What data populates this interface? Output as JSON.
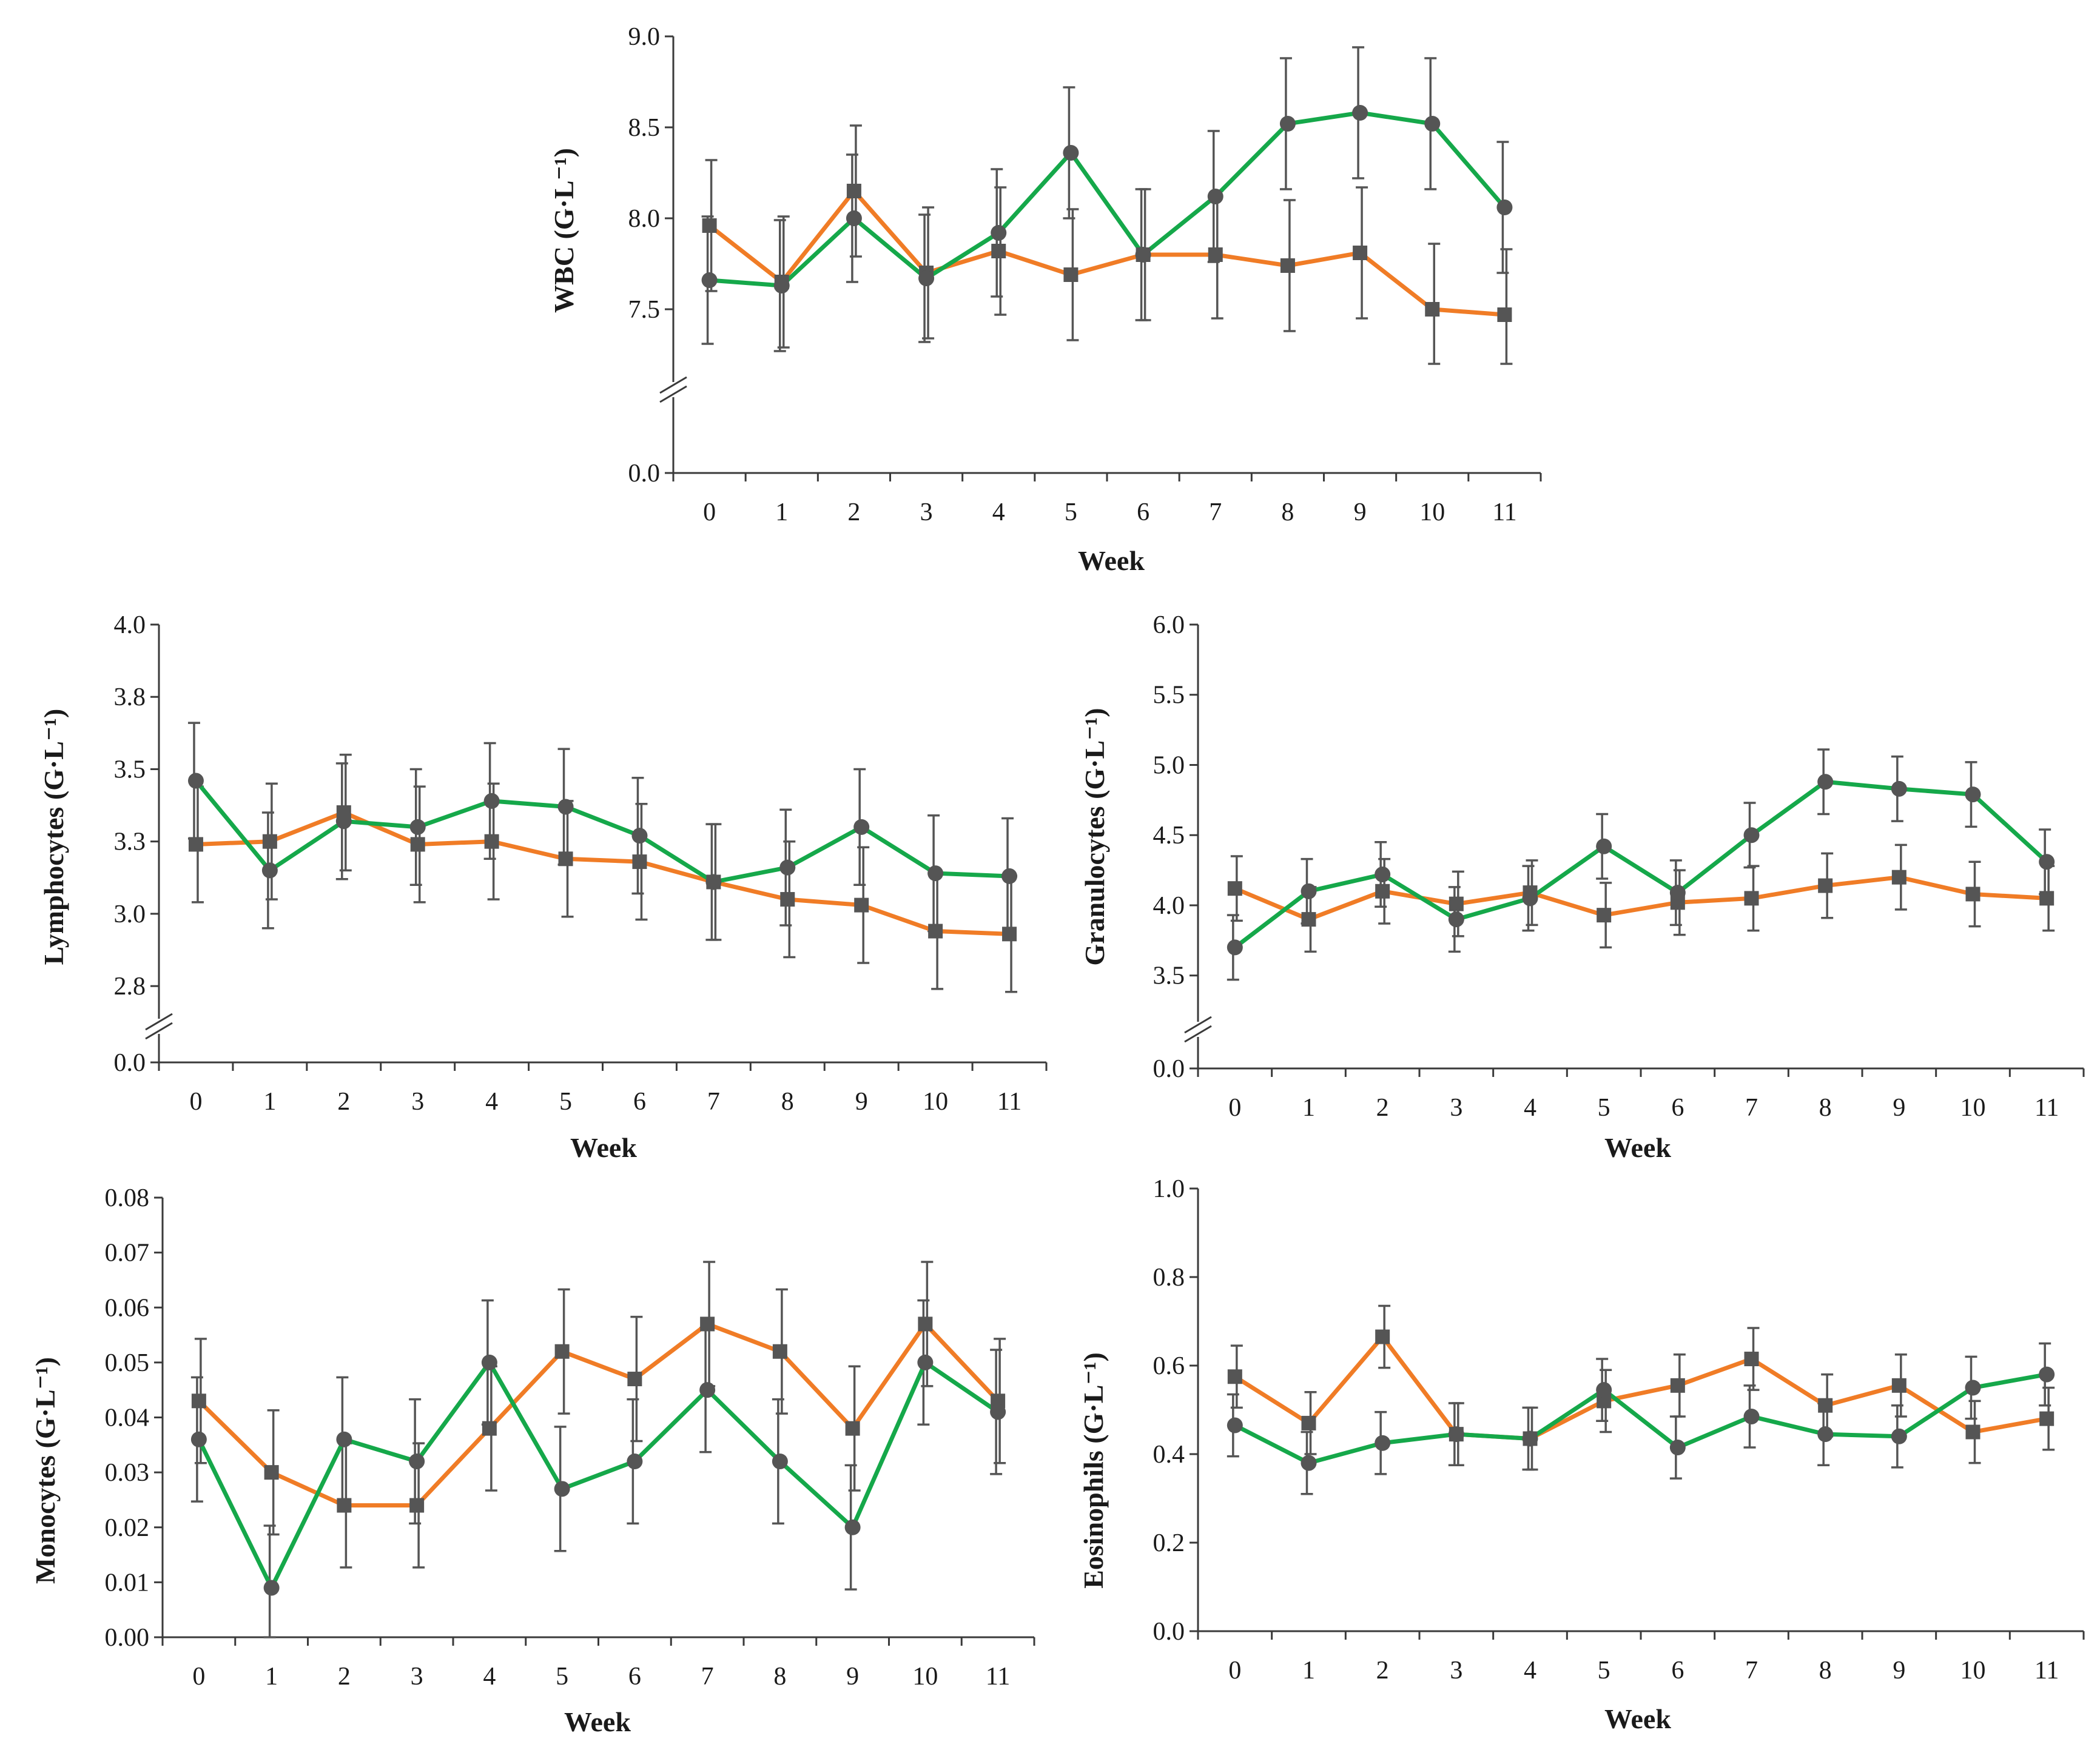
{
  "colors": {
    "series_a": "#F07C26",
    "series_b": "#15A84A",
    "marker": "#555555"
  },
  "chart_data": [
    {
      "id": "wbc",
      "type": "line",
      "title": "",
      "xlabel": "Week",
      "ylabel": "WBC (G·L⁻¹)",
      "ylim": [
        7.2,
        9.0
      ],
      "yticks": [
        7.5,
        8.0,
        8.5,
        9.0
      ],
      "ytick_labels": [
        "7.5",
        "8.0",
        "8.5",
        "9.0"
      ],
      "y_break_label": "0.0",
      "categories": [
        "0",
        "1",
        "2",
        "3",
        "4",
        "5",
        "6",
        "7",
        "8",
        "9",
        "10",
        "11"
      ],
      "series": [
        {
          "name": "square",
          "marker": "square",
          "color": "#F07C26",
          "values": [
            7.96,
            7.65,
            8.15,
            7.7,
            7.82,
            7.69,
            7.8,
            7.8,
            7.74,
            7.81,
            7.5,
            7.47
          ],
          "errors": [
            0.36,
            0.36,
            0.36,
            0.36,
            0.35,
            0.36,
            0.36,
            0.35,
            0.36,
            0.36,
            0.36,
            0.36
          ]
        },
        {
          "name": "circle",
          "marker": "circle",
          "color": "#15A84A",
          "values": [
            7.66,
            7.63,
            8.0,
            7.67,
            7.92,
            8.36,
            7.8,
            8.12,
            8.52,
            8.58,
            8.52,
            8.06
          ],
          "errors": [
            0.35,
            0.36,
            0.35,
            0.35,
            0.35,
            0.36,
            0.36,
            0.36,
            0.36,
            0.36,
            0.36,
            0.36
          ]
        }
      ]
    },
    {
      "id": "lymphocytes",
      "type": "line",
      "title": "",
      "xlabel": "Week",
      "ylabel": "Lymphocytes (G·L⁻¹)",
      "ylim": [
        2.7,
        4.0
      ],
      "yticks": [
        2.75,
        3.0,
        3.25,
        3.5,
        3.75,
        4.0
      ],
      "ytick_labels": [
        "2.8",
        "3.0",
        "3.3",
        "3.5",
        "3.8",
        "4.0"
      ],
      "y_break_label": "0.0",
      "categories": [
        "0",
        "1",
        "2",
        "3",
        "4",
        "5",
        "6",
        "7",
        "8",
        "9",
        "10",
        "11"
      ],
      "series": [
        {
          "name": "square",
          "marker": "square",
          "color": "#F07C26",
          "values": [
            3.24,
            3.25,
            3.35,
            3.24,
            3.25,
            3.19,
            3.18,
            3.11,
            3.05,
            3.03,
            2.94,
            2.93
          ],
          "errors": [
            0.2,
            0.2,
            0.2,
            0.2,
            0.2,
            0.2,
            0.2,
            0.2,
            0.2,
            0.2,
            0.2,
            0.2
          ]
        },
        {
          "name": "circle",
          "marker": "circle",
          "color": "#15A84A",
          "values": [
            3.46,
            3.15,
            3.32,
            3.3,
            3.39,
            3.37,
            3.27,
            3.11,
            3.16,
            3.3,
            3.14,
            3.13
          ],
          "errors": [
            0.2,
            0.2,
            0.2,
            0.2,
            0.2,
            0.2,
            0.2,
            0.2,
            0.2,
            0.2,
            0.2,
            0.2
          ]
        }
      ]
    },
    {
      "id": "granulocytes",
      "type": "line",
      "title": "",
      "xlabel": "Week",
      "ylabel": "Granulocytes (G·L⁻¹)",
      "ylim": [
        3.3,
        6.0
      ],
      "yticks": [
        3.5,
        4.0,
        4.5,
        5.0,
        5.5,
        6.0
      ],
      "ytick_labels": [
        "3.5",
        "4.0",
        "4.5",
        "5.0",
        "5.5",
        "6.0"
      ],
      "y_break_label": "0.0",
      "categories": [
        "0",
        "1",
        "2",
        "3",
        "4",
        "5",
        "6",
        "7",
        "8",
        "9",
        "10",
        "11"
      ],
      "series": [
        {
          "name": "square",
          "marker": "square",
          "color": "#F07C26",
          "values": [
            4.12,
            3.9,
            4.1,
            4.01,
            4.09,
            3.93,
            4.02,
            4.05,
            4.14,
            4.2,
            4.08,
            4.05
          ],
          "errors": [
            0.23,
            0.23,
            0.23,
            0.23,
            0.23,
            0.23,
            0.23,
            0.23,
            0.23,
            0.23,
            0.23,
            0.23
          ]
        },
        {
          "name": "circle",
          "marker": "circle",
          "color": "#15A84A",
          "values": [
            3.7,
            4.1,
            4.22,
            3.9,
            4.05,
            4.42,
            4.09,
            4.5,
            4.88,
            4.83,
            4.79,
            4.31
          ],
          "errors": [
            0.23,
            0.23,
            0.23,
            0.23,
            0.23,
            0.23,
            0.23,
            0.23,
            0.23,
            0.23,
            0.23,
            0.23
          ]
        }
      ]
    },
    {
      "id": "monocytes",
      "type": "line",
      "title": "",
      "xlabel": "Week",
      "ylabel": "Monocytes (G·L⁻¹)",
      "ylim": [
        0,
        0.08
      ],
      "yticks": [
        0,
        0.01,
        0.02,
        0.03,
        0.04,
        0.05,
        0.06,
        0.07,
        0.08
      ],
      "ytick_labels": [
        "0.00",
        "0.01",
        "0.02",
        "0.03",
        "0.04",
        "0.05",
        "0.06",
        "0.07",
        "0.08"
      ],
      "categories": [
        "0",
        "1",
        "2",
        "3",
        "4",
        "5",
        "6",
        "7",
        "8",
        "9",
        "10",
        "11"
      ],
      "series": [
        {
          "name": "square",
          "marker": "square",
          "color": "#F07C26",
          "values": [
            0.043,
            0.03,
            0.024,
            0.024,
            0.038,
            0.052,
            0.047,
            0.057,
            0.052,
            0.038,
            0.057,
            0.043
          ],
          "errors": [
            0.0113,
            0.0113,
            0.0113,
            0.0113,
            0.0113,
            0.0113,
            0.0113,
            0.0113,
            0.0113,
            0.0113,
            0.0113,
            0.0113
          ]
        },
        {
          "name": "circle",
          "marker": "circle",
          "color": "#15A84A",
          "values": [
            0.036,
            0.009,
            0.036,
            0.032,
            0.05,
            0.027,
            0.032,
            0.045,
            0.032,
            0.02,
            0.05,
            0.041
          ],
          "errors": [
            0.0113,
            0.0113,
            0.0113,
            0.0113,
            0.0113,
            0.0113,
            0.0113,
            0.0113,
            0.0113,
            0.0113,
            0.0113,
            0.0113
          ]
        }
      ]
    },
    {
      "id": "eosinophils",
      "type": "line",
      "title": "",
      "xlabel": "Week",
      "ylabel": "Eosinophils  (G·L⁻¹)",
      "ylim": [
        0,
        1.0
      ],
      "yticks": [
        0,
        0.2,
        0.4,
        0.6,
        0.8,
        1.0
      ],
      "ytick_labels": [
        "0.0",
        "0.2",
        "0.4",
        "0.6",
        "0.8",
        "1.0"
      ],
      "categories": [
        "0",
        "1",
        "2",
        "3",
        "4",
        "5",
        "6",
        "7",
        "8",
        "9",
        "10",
        "11"
      ],
      "series": [
        {
          "name": "square",
          "marker": "square",
          "color": "#F07C26",
          "values": [
            0.575,
            0.47,
            0.665,
            0.445,
            0.435,
            0.52,
            0.555,
            0.615,
            0.51,
            0.555,
            0.45,
            0.48
          ],
          "errors": [
            0.07,
            0.07,
            0.07,
            0.07,
            0.07,
            0.07,
            0.07,
            0.07,
            0.07,
            0.07,
            0.07,
            0.07
          ]
        },
        {
          "name": "circle",
          "marker": "circle",
          "color": "#15A84A",
          "values": [
            0.465,
            0.38,
            0.425,
            0.445,
            0.435,
            0.545,
            0.415,
            0.485,
            0.445,
            0.44,
            0.55,
            0.58
          ],
          "errors": [
            0.07,
            0.07,
            0.07,
            0.07,
            0.07,
            0.07,
            0.07,
            0.07,
            0.07,
            0.07,
            0.07,
            0.07
          ]
        }
      ]
    }
  ]
}
